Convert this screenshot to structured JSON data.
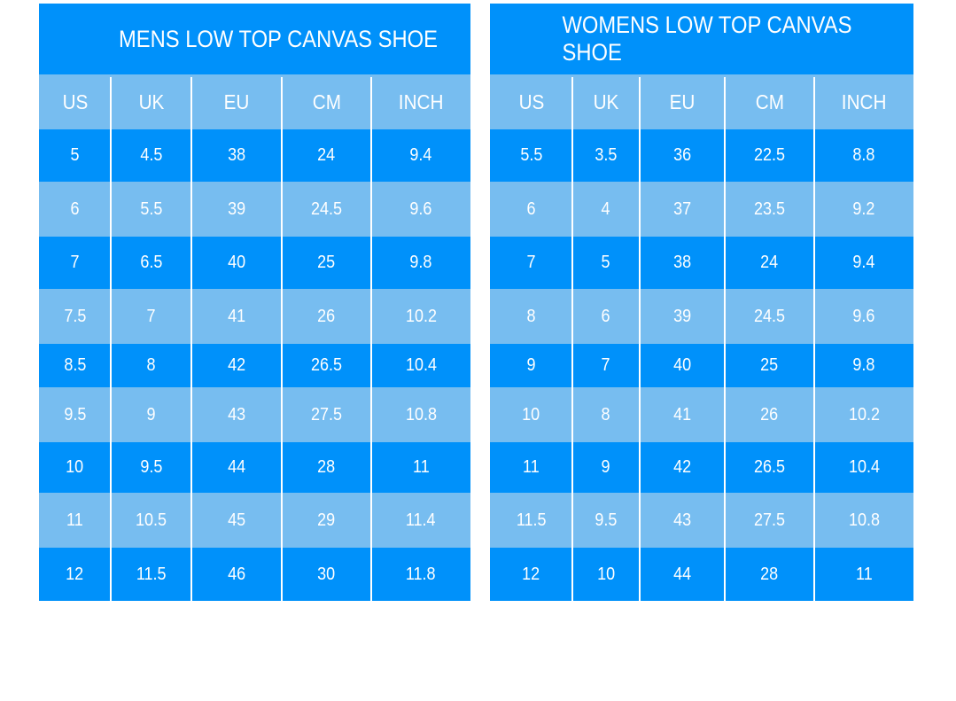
{
  "colors": {
    "dark": "#0091fa",
    "light": "#77bdf0",
    "text": "#ffffff"
  },
  "tables": [
    {
      "title": "MENS LOW TOP CANVAS SHOE",
      "headers": [
        "US",
        "UK",
        "EU",
        "CM",
        "INCH"
      ],
      "rows": [
        [
          "5",
          "4.5",
          "38",
          "24",
          "9.4"
        ],
        [
          "6",
          "5.5",
          "39",
          "24.5",
          "9.6"
        ],
        [
          "7",
          "6.5",
          "40",
          "25",
          "9.8"
        ],
        [
          "7.5",
          "7",
          "41",
          "26",
          "10.2"
        ],
        [
          "8.5",
          "8",
          "42",
          "26.5",
          "10.4"
        ],
        [
          "9.5",
          "9",
          "43",
          "27.5",
          "10.8"
        ],
        [
          "10",
          "9.5",
          "44",
          "28",
          "11"
        ],
        [
          "11",
          "10.5",
          "45",
          "29",
          "11.4"
        ],
        [
          "12",
          "11.5",
          "46",
          "30",
          "11.8"
        ]
      ]
    },
    {
      "title": "WOMENS LOW TOP CANVAS SHOE",
      "headers": [
        "US",
        "UK",
        "EU",
        "CM",
        "INCH"
      ],
      "rows": [
        [
          "5.5",
          "3.5",
          "36",
          "22.5",
          "8.8"
        ],
        [
          "6",
          "4",
          "37",
          "23.5",
          "9.2"
        ],
        [
          "7",
          "5",
          "38",
          "24",
          "9.4"
        ],
        [
          "8",
          "6",
          "39",
          "24.5",
          "9.6"
        ],
        [
          "9",
          "7",
          "40",
          "25",
          "9.8"
        ],
        [
          "10",
          "8",
          "41",
          "26",
          "10.2"
        ],
        [
          "11",
          "9",
          "42",
          "26.5",
          "10.4"
        ],
        [
          "11.5",
          "9.5",
          "43",
          "27.5",
          "10.8"
        ],
        [
          "12",
          "10",
          "44",
          "28",
          "11"
        ]
      ]
    }
  ]
}
